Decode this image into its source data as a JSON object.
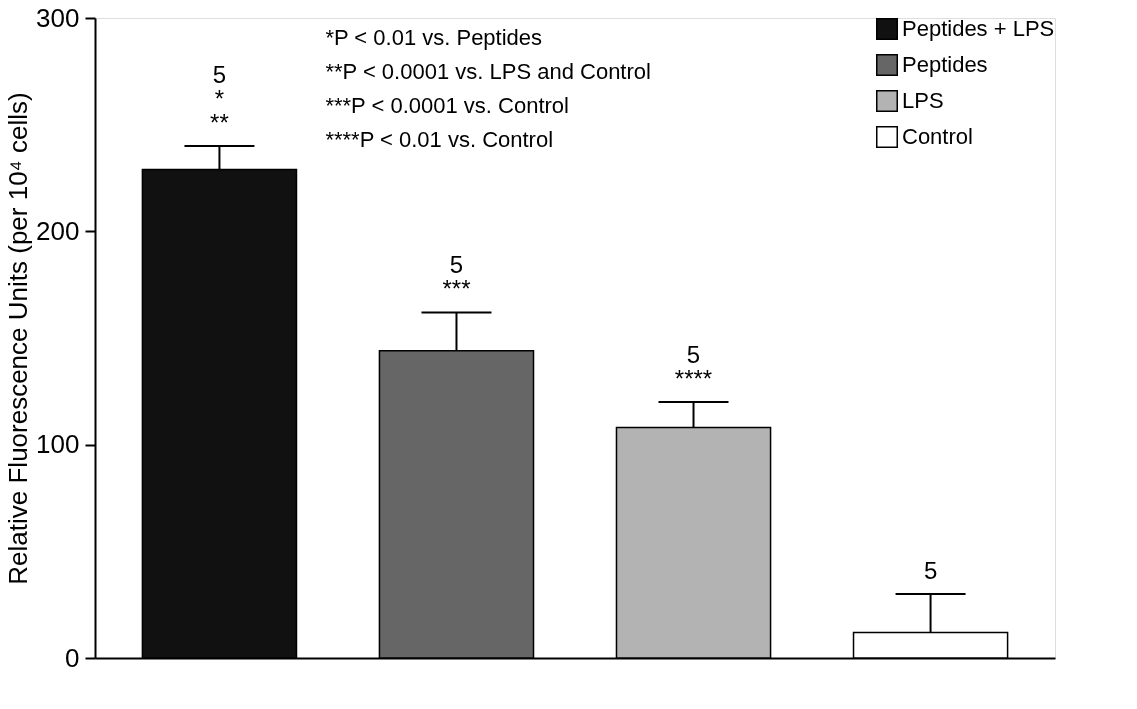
{
  "chart_data": {
    "type": "bar",
    "ylabel": "Relative Fluorescence Units (per 10⁴ cells)",
    "categories": [
      null,
      null,
      null,
      null
    ],
    "series": [
      {
        "name": "Peptides + LPS",
        "color": "#111111",
        "values": [
          229,
          null,
          null,
          null
        ],
        "errors": [
          [
            229,
            240
          ],
          null,
          null,
          null
        ]
      },
      {
        "name": "Peptides",
        "color": "#666666",
        "values": [
          null,
          144,
          null,
          null
        ],
        "errors": [
          null,
          [
            144,
            162
          ],
          null,
          null
        ]
      },
      {
        "name": "LPS",
        "color": "#b3b3b3",
        "values": [
          null,
          null,
          108,
          null
        ],
        "errors": [
          null,
          null,
          [
            108,
            120
          ],
          null
        ]
      },
      {
        "name": "Control",
        "color": "#ffffff",
        "values": [
          null,
          null,
          null,
          12
        ],
        "errors": [
          null,
          null,
          null,
          [
            12,
            30
          ]
        ]
      }
    ],
    "ylim": [
      0,
      300
    ],
    "yticks": [
      0,
      100,
      200,
      300
    ],
    "grid": false,
    "legend": "top right",
    "annotations": [
      "*P < 0.01 vs. Peptides",
      "**P < 0.0001 vs. LPS and Control",
      "***P < 0.0001 vs. Control",
      "****P < 0.01 vs. Control",
      "5\n*\n**",
      "5\n***",
      "5\n****",
      "5"
    ]
  }
}
